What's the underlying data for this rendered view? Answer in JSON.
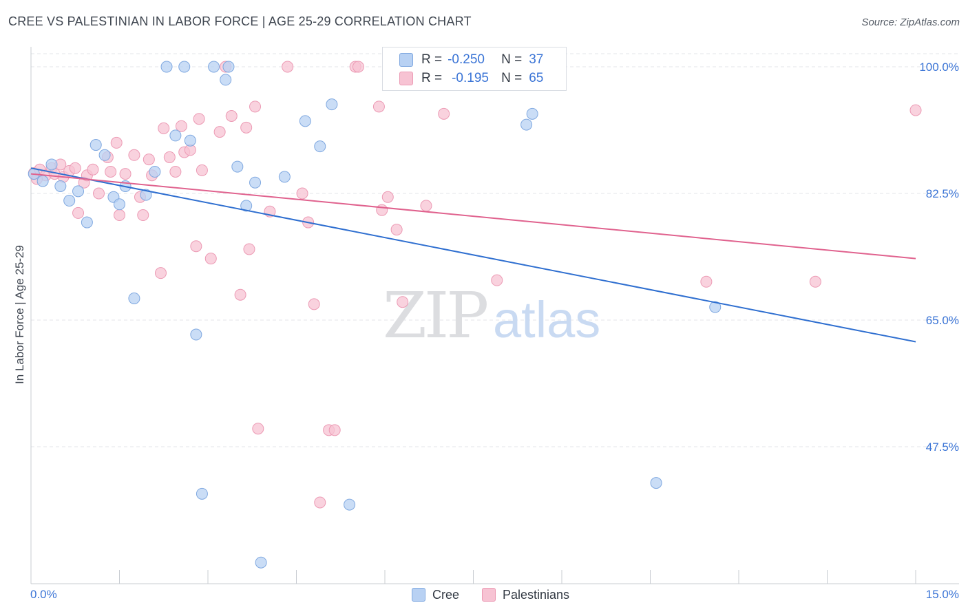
{
  "title": "CREE VS PALESTINIAN IN LABOR FORCE | AGE 25-29 CORRELATION CHART",
  "source": "Source: ZipAtlas.com",
  "watermark": {
    "zip": "ZIP",
    "atlas": "atlas"
  },
  "colors": {
    "cree_fill": "#b8d1f3",
    "cree_stroke": "#7fa8e0",
    "cree_line": "#2f6fd0",
    "pal_fill": "#f7c3d3",
    "pal_stroke": "#ec9ab4",
    "pal_line": "#e0628e",
    "axis_text": "#3a74d6",
    "grid": "#e3e6ea"
  },
  "legend": {
    "rows": [
      {
        "r_label": "R =",
        "r_value": "-0.250",
        "n_label": "N =",
        "n_value": "37"
      },
      {
        "r_label": "R =",
        "r_value": "-0.195",
        "n_label": "N =",
        "n_value": "65"
      }
    ]
  },
  "bottom_legend": {
    "cree": "Cree",
    "palestinians": "Palestinians"
  },
  "chart_data": {
    "type": "scatter",
    "title": "CREE VS PALESTINIAN IN LABOR FORCE | AGE 25-29 CORRELATION CHART",
    "xlabel": "",
    "ylabel": "In Labor Force | Age 25-29",
    "xlim": [
      0,
      15
    ],
    "ylim": [
      30,
      101
    ],
    "x_ticks": [
      0,
      1.5,
      3,
      4.5,
      6,
      7.5,
      9,
      10.5,
      12,
      13.5,
      15
    ],
    "x_tick_labels": {
      "left": "0.0%",
      "right": "15.0%"
    },
    "y_ticks": [
      47.5,
      65.0,
      82.5,
      100.0
    ],
    "y_tick_labels": [
      "47.5%",
      "65.0%",
      "82.5%",
      "100.0%"
    ],
    "series": [
      {
        "name": "Cree",
        "r": -0.25,
        "n": 37,
        "trend": [
          [
            0,
            86.0
          ],
          [
            15,
            62.0
          ]
        ],
        "points": [
          [
            0.05,
            85.2
          ],
          [
            0.2,
            84.2
          ],
          [
            0.35,
            86.5
          ],
          [
            0.5,
            83.5
          ],
          [
            0.65,
            81.5
          ],
          [
            0.8,
            82.8
          ],
          [
            0.95,
            78.5
          ],
          [
            1.1,
            89.2
          ],
          [
            1.25,
            87.8
          ],
          [
            1.4,
            82.0
          ],
          [
            1.5,
            81.0
          ],
          [
            1.6,
            83.5
          ],
          [
            1.75,
            68.0
          ],
          [
            1.95,
            82.3
          ],
          [
            2.1,
            85.5
          ],
          [
            2.3,
            100.0
          ],
          [
            2.45,
            90.5
          ],
          [
            2.6,
            100.0
          ],
          [
            2.7,
            89.8
          ],
          [
            2.8,
            63.0
          ],
          [
            2.9,
            41.0
          ],
          [
            3.1,
            100.0
          ],
          [
            3.3,
            98.2
          ],
          [
            3.35,
            100.0
          ],
          [
            3.5,
            86.2
          ],
          [
            3.65,
            80.8
          ],
          [
            3.8,
            84.0
          ],
          [
            3.9,
            31.5
          ],
          [
            4.3,
            84.8
          ],
          [
            4.65,
            92.5
          ],
          [
            4.9,
            89.0
          ],
          [
            5.1,
            94.8
          ],
          [
            5.4,
            39.5
          ],
          [
            8.4,
            92.0
          ],
          [
            8.5,
            93.5
          ],
          [
            10.6,
            42.5
          ],
          [
            11.6,
            66.8
          ]
        ]
      },
      {
        "name": "Palestinians",
        "r": -0.195,
        "n": 65,
        "trend": [
          [
            0,
            85.2
          ],
          [
            15,
            73.5
          ]
        ],
        "points": [
          [
            0.05,
            85.3
          ],
          [
            0.15,
            85.8
          ],
          [
            0.25,
            85.0
          ],
          [
            0.35,
            86.0
          ],
          [
            0.4,
            85.2
          ],
          [
            0.5,
            86.5
          ],
          [
            0.55,
            84.8
          ],
          [
            0.65,
            85.6
          ],
          [
            0.75,
            86.0
          ],
          [
            0.8,
            79.8
          ],
          [
            0.9,
            84.0
          ],
          [
            0.95,
            85.0
          ],
          [
            1.05,
            85.8
          ],
          [
            1.15,
            82.5
          ],
          [
            1.3,
            87.5
          ],
          [
            1.35,
            85.5
          ],
          [
            1.45,
            89.5
          ],
          [
            1.5,
            79.5
          ],
          [
            1.6,
            85.2
          ],
          [
            1.75,
            87.8
          ],
          [
            1.85,
            82.0
          ],
          [
            1.9,
            79.5
          ],
          [
            2.0,
            87.2
          ],
          [
            2.05,
            85.0
          ],
          [
            2.2,
            71.5
          ],
          [
            2.25,
            91.5
          ],
          [
            2.35,
            87.5
          ],
          [
            2.45,
            85.5
          ],
          [
            2.55,
            91.8
          ],
          [
            2.6,
            88.2
          ],
          [
            2.7,
            88.5
          ],
          [
            2.8,
            75.2
          ],
          [
            2.85,
            92.8
          ],
          [
            2.9,
            85.7
          ],
          [
            3.05,
            73.5
          ],
          [
            3.2,
            91.0
          ],
          [
            3.3,
            100.0
          ],
          [
            3.4,
            93.2
          ],
          [
            3.55,
            68.5
          ],
          [
            3.65,
            91.6
          ],
          [
            3.7,
            74.8
          ],
          [
            3.8,
            94.5
          ],
          [
            3.85,
            50.0
          ],
          [
            4.05,
            80.0
          ],
          [
            4.35,
            100.0
          ],
          [
            4.6,
            82.5
          ],
          [
            4.7,
            78.5
          ],
          [
            4.8,
            67.2
          ],
          [
            5.05,
            49.8
          ],
          [
            5.15,
            49.8
          ],
          [
            4.9,
            39.8
          ],
          [
            5.5,
            100.0
          ],
          [
            5.55,
            100.0
          ],
          [
            5.9,
            94.5
          ],
          [
            5.95,
            80.2
          ],
          [
            6.05,
            82.0
          ],
          [
            6.2,
            77.5
          ],
          [
            6.3,
            67.5
          ],
          [
            6.7,
            80.8
          ],
          [
            7.0,
            93.5
          ],
          [
            7.9,
            70.5
          ],
          [
            11.45,
            70.3
          ],
          [
            13.3,
            70.3
          ],
          [
            15.0,
            94.0
          ],
          [
            0.1,
            84.5
          ]
        ]
      }
    ]
  }
}
